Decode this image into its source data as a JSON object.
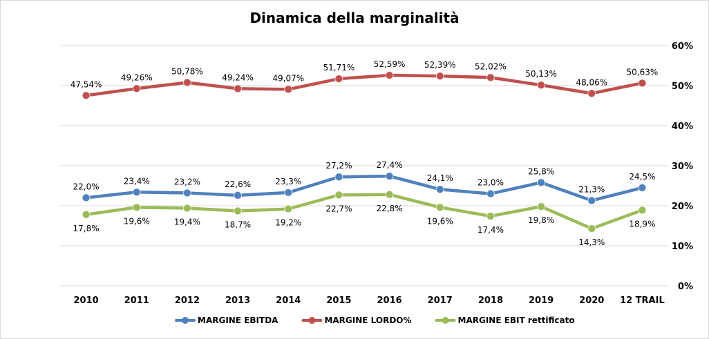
{
  "chart_data": {
    "type": "line",
    "title": "Dinamica della marginalità",
    "categories": [
      "2010",
      "2011",
      "2012",
      "2013",
      "2014",
      "2015",
      "2016",
      "2017",
      "2018",
      "2019",
      "2020",
      "12 TRAIL"
    ],
    "ylim": [
      0,
      60
    ],
    "ytick_values": [
      0,
      10,
      20,
      30,
      40,
      50,
      60
    ],
    "ytick_labels": [
      "0%",
      "10%",
      "20%",
      "30%",
      "40%",
      "50%",
      "60%"
    ],
    "y_axis_side": "right",
    "grid": true,
    "legend_position": "bottom",
    "series": [
      {
        "name": "MARGINE EBITDA",
        "color": "#4f81bd",
        "values": [
          22.0,
          23.4,
          23.2,
          22.6,
          23.3,
          27.2,
          27.4,
          24.1,
          23.0,
          25.8,
          21.3,
          24.5
        ],
        "labels": [
          "22,0%",
          "23,4%",
          "23,2%",
          "22,6%",
          "23,3%",
          "27,2%",
          "27,4%",
          "24,1%",
          "23,0%",
          "25,8%",
          "21,3%",
          "24,5%"
        ],
        "label_position": "above"
      },
      {
        "name": "MARGINE LORDO%",
        "color": "#c0504d",
        "values": [
          47.54,
          49.26,
          50.78,
          49.24,
          49.07,
          51.71,
          52.59,
          52.39,
          52.02,
          50.13,
          48.06,
          50.63
        ],
        "labels": [
          "47,54%",
          "49,26%",
          "50,78%",
          "49,24%",
          "49,07%",
          "51,71%",
          "52,59%",
          "52,39%",
          "52,02%",
          "50,13%",
          "48,06%",
          "50,63%"
        ],
        "label_position": "above"
      },
      {
        "name": "MARGINE EBIT rettificato",
        "color": "#9bbb59",
        "values": [
          17.8,
          19.6,
          19.4,
          18.7,
          19.2,
          22.7,
          22.8,
          19.6,
          17.4,
          19.8,
          14.3,
          18.9
        ],
        "labels": [
          "17,8%",
          "19,6%",
          "19,4%",
          "18,7%",
          "19,2%",
          "22,7%",
          "22,8%",
          "19,6%",
          "17,4%",
          "19,8%",
          "14,3%",
          "18,9%"
        ],
        "label_position": "below"
      }
    ]
  }
}
